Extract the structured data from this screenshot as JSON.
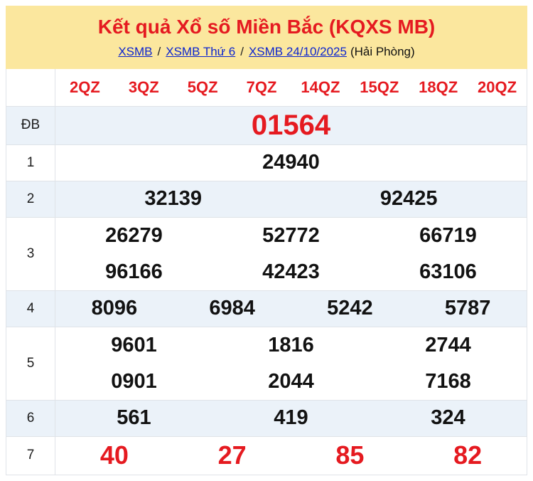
{
  "colors": {
    "yellow": "#fbe79e",
    "red": "#e51a20",
    "blue": "#0b24cf",
    "lightblue": "#ebf2f9",
    "border": "#dfe3e8"
  },
  "header": {
    "title": "Kết quả Xổ số Miền Bắc (KQXS MB)",
    "breadcrumb": [
      {
        "label": "XSMB"
      },
      {
        "label": "XSMB Thứ 6"
      },
      {
        "label": "XSMB 24/10/2025"
      }
    ],
    "separator": "/",
    "breadcrumb_suffix": "(Hải Phòng)"
  },
  "table": {
    "column_headers": [
      "2QZ",
      "3QZ",
      "5QZ",
      "7QZ",
      "14QZ",
      "15QZ",
      "18QZ",
      "20QZ"
    ],
    "rows": [
      {
        "label": "ĐB",
        "highlight": true,
        "emphasis": "jackpot",
        "lines": [
          [
            "01564"
          ]
        ]
      },
      {
        "label": "1",
        "highlight": false,
        "emphasis": "none",
        "lines": [
          [
            "24940"
          ]
        ]
      },
      {
        "label": "2",
        "highlight": true,
        "emphasis": "none",
        "lines": [
          [
            "32139",
            "92425"
          ]
        ]
      },
      {
        "label": "3",
        "highlight": false,
        "emphasis": "none",
        "lines": [
          [
            "26279",
            "52772",
            "66719"
          ],
          [
            "96166",
            "42423",
            "63106"
          ]
        ]
      },
      {
        "label": "4",
        "highlight": true,
        "emphasis": "none",
        "lines": [
          [
            "8096",
            "6984",
            "5242",
            "5787"
          ]
        ]
      },
      {
        "label": "5",
        "highlight": false,
        "emphasis": "none",
        "lines": [
          [
            "9601",
            "1816",
            "2744"
          ],
          [
            "0901",
            "2044",
            "7168"
          ]
        ]
      },
      {
        "label": "6",
        "highlight": true,
        "emphasis": "none",
        "lines": [
          [
            "561",
            "419",
            "324"
          ]
        ]
      },
      {
        "label": "7",
        "highlight": false,
        "emphasis": "red",
        "lines": [
          [
            "40",
            "27",
            "85",
            "82"
          ]
        ]
      }
    ]
  }
}
